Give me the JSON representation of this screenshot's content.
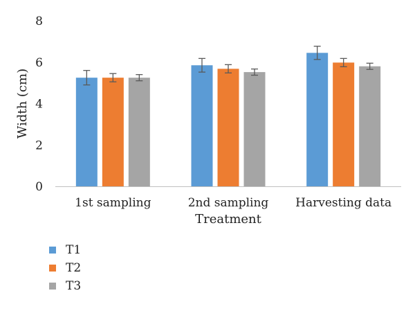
{
  "chart_data": {
    "type": "bar",
    "categories": [
      "1st sampling",
      "2nd sampling",
      "Harvesting data"
    ],
    "xlabel": "Treatment",
    "ylabel": "Width (cm)",
    "ylim": [
      0,
      8
    ],
    "yticks": [
      "0",
      "2",
      "4",
      "6",
      "8"
    ],
    "grid": false,
    "error_bars": true,
    "legend_position": "bottom-left",
    "series": [
      {
        "name": "T1",
        "color": "#5b9bd5",
        "values": [
          5.25,
          5.85,
          6.45
        ],
        "errors": [
          0.35,
          0.33,
          0.32
        ]
      },
      {
        "name": "T2",
        "color": "#ed7d31",
        "values": [
          5.25,
          5.68,
          5.98
        ],
        "errors": [
          0.2,
          0.2,
          0.2
        ]
      },
      {
        "name": "T3",
        "color": "#a5a5a5",
        "values": [
          5.25,
          5.52,
          5.8
        ],
        "errors": [
          0.15,
          0.15,
          0.15
        ]
      }
    ]
  }
}
